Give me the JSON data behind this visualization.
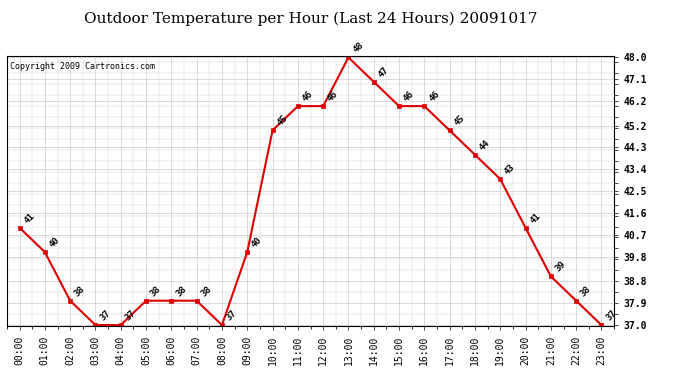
{
  "title": "Outdoor Temperature per Hour (Last 24 Hours) 20091017",
  "copyright": "Copyright 2009 Cartronics.com",
  "hours": [
    "00:00",
    "01:00",
    "02:00",
    "03:00",
    "04:00",
    "05:00",
    "06:00",
    "07:00",
    "08:00",
    "09:00",
    "10:00",
    "11:00",
    "12:00",
    "13:00",
    "14:00",
    "15:00",
    "16:00",
    "17:00",
    "18:00",
    "19:00",
    "20:00",
    "21:00",
    "22:00",
    "23:00"
  ],
  "temps": [
    41,
    40,
    38,
    37,
    37,
    38,
    38,
    38,
    37,
    40,
    45,
    46,
    46,
    48,
    47,
    46,
    46,
    45,
    44,
    43,
    41,
    39,
    38,
    37
  ],
  "ylim_min": 37.0,
  "ylim_max": 48.0,
  "yticks": [
    37.0,
    37.9,
    38.8,
    39.8,
    40.7,
    41.6,
    42.5,
    43.4,
    44.3,
    45.2,
    46.2,
    47.1,
    48.0
  ],
  "line_color": "#dd0000",
  "marker_color": "#dd0000",
  "grid_color": "#cccccc",
  "bg_color": "#ffffff",
  "title_fontsize": 11,
  "annotation_fontsize": 6.5,
  "copyright_fontsize": 6,
  "tick_fontsize": 7,
  "xlabel_fontsize": 7
}
